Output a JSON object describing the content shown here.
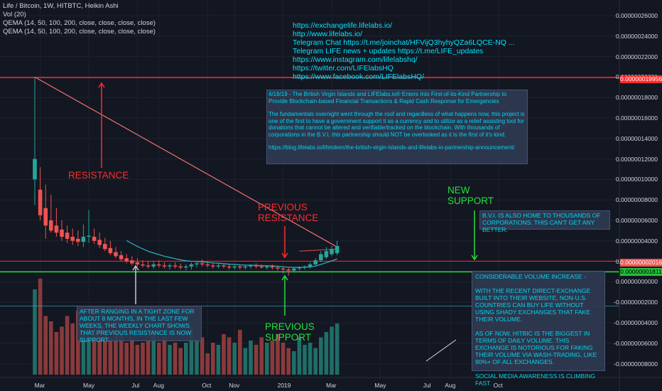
{
  "legend": {
    "symbol": "Life / Bitcoin, 1W, HITBTC, Heikin Ashi",
    "vol": "Vol (20)",
    "qema1": "QEMA (14, 50, 100, 200, close, close, close, close)",
    "qema2": "QEMA (14, 50, 100, 200, close, close, close, close)"
  },
  "links": [
    "https://exchangelife.lifelabs.io/",
    "http://www.lifelabs.io/",
    "Telegram Chat  https://t.me/joinchat/HFVijQ3hyhyQZa6LQCE-NQ ...",
    "Telegram LIFE news + updates  https://t.me/LIFE_updates",
    "https://www.instagram.com/lifelabshq/",
    "https://twitter.com/LIFElabsHQ",
    "https://www.facebook.com/LIFElabsHQ/"
  ],
  "news": {
    "p1": "4/18/19 - The British Virgin Islands and LIFElabs.io® Enters Into First-of-its-Kind Partnership to Provide Blockchain-based Financial Transactions & Rapid Cash Response for Emergencies",
    "p2": "The fundamentals overnight went through the roof and regardless of what happens now, this project is one of the first to have a government support it as a currency and to utilize as a relief assisting tool for donations that cannot be altered and verifiable/tracked on the blockchain. With thousands of corporations in the B.V.I, this partnership should NOT be overlooked  as it is the first of it's kind.",
    "p3": "https://blog.lifelabs.io/lifetoken/the-british-virgin-islands-and-lifelabs-io-partnership-announcement/"
  },
  "annotations": {
    "resistance": "RESISTANCE",
    "prev_resistance_1": "PREVIOUS",
    "prev_resistance_2": "RESISTANCE",
    "new_support_1": "NEW",
    "new_support_2": "SUPPORT",
    "prev_support_1": "PREVIOUS",
    "prev_support_2": "SUPPORT",
    "bvi": "B.V.I. IS ALSO HOME TO THOUSANDS OF CORPORATIONS. THIS CAN'T GET ANY BETTER.",
    "range": "AFTER RANGING IN A TIGHT ZONE FOR ABOUT 8 MONTHS, IN THE LAST FEW WEEKS, THE WEEKLY CHART SHOWS THAT PREVIOUS RESISTANCE IS NOW SUPPORT.",
    "volume_1": "CONSIDERABLE VOLUME INCREASE -",
    "volume_2": "WITH THE RECENT DIRECT-EXCHANGE BUILT INTO THEIR WEBSITE, NON-U.S. COUNTRIES CAN BUY LIFE WITHOUT USING SHADY EXCHANGES THAT FAKE THEIR VOLUME.",
    "volume_3": "AS OF NOW, HITBIC IS THE BIGGEST IN TERMS OF DAILY VOLUME. THIS EXCHANGE IS NOTORIOUS FOR FAKING THEIR VOLUME VIA WASH-TRADING, LIKE 90%+ OF ALL EXCHANGES.",
    "volume_4": "SOCIAL MEDIA AWARENESS IS CLIMBING FAST."
  },
  "price_tags": {
    "resistance": "0.00000019956",
    "current": "0.00000002016",
    "support": "0.00000001811"
  },
  "colors": {
    "background": "#131722",
    "up_candle": "#26a69a",
    "down_candle": "#ef5350",
    "up_volume": "#1f6e67",
    "down_volume": "#8a3a3c",
    "ema": "#2bb7c5",
    "resistance_line": "#ff2b2b",
    "support_line": "#22e03c",
    "annotation_cyan": "#00e5ff"
  },
  "chart_data": {
    "type": "candlestick",
    "series_type": "Heikin Ashi",
    "y_axis": {
      "ticks": [
        "0.00000026000",
        "0.00000024000",
        "0.00000022000",
        "0.00000020000",
        "0.00000018000",
        "0.00000016000",
        "0.00000014000",
        "0.00000012000",
        "0.00000010000",
        "0.00000008000",
        "0.00000006000",
        "0.00000004000",
        "0.00000002000",
        "0.00000000000",
        "-0.00000002000",
        "-0.00000004000",
        "-0.00000006000",
        "-0.00000008000"
      ],
      "range": [
        -9e-08,
        2.7e-07
      ]
    },
    "x_axis": {
      "ticks": [
        {
          "label": "Mar",
          "week": 1
        },
        {
          "label": "May",
          "week": 10
        },
        {
          "label": "Jul",
          "week": 19
        },
        {
          "label": "Aug",
          "week": 23
        },
        {
          "label": "Oct",
          "week": 32
        },
        {
          "label": "Nov",
          "week": 37
        },
        {
          "label": "2019",
          "week": 46
        },
        {
          "label": "Mar",
          "week": 55
        },
        {
          "label": "May",
          "week": 64
        },
        {
          "label": "Jul",
          "week": 73
        },
        {
          "label": "Aug",
          "week": 77
        },
        {
          "label": "Oct",
          "week": 86
        }
      ]
    },
    "candles": [
      {
        "o": 1e-07,
        "h": 2e-07,
        "l": 7.5e-08,
        "c": 1.2e-07
      },
      {
        "o": 9e-08,
        "h": 1.12e-07,
        "l": 6e-08,
        "c": 6.5e-08
      },
      {
        "o": 7.2e-08,
        "h": 9.5e-08,
        "l": 4.2e-08,
        "c": 5.5e-08
      },
      {
        "o": 6e-08,
        "h": 8.5e-08,
        "l": 4.8e-08,
        "c": 5e-08
      },
      {
        "o": 5.5e-08,
        "h": 7.2e-08,
        "l": 4.4e-08,
        "c": 4.8e-08
      },
      {
        "o": 5.1e-08,
        "h": 6e-08,
        "l": 4e-08,
        "c": 4.4e-08
      },
      {
        "o": 4.8e-08,
        "h": 5.5e-08,
        "l": 3.8e-08,
        "c": 4.2e-08
      },
      {
        "o": 4.4e-08,
        "h": 5.2e-08,
        "l": 3.6e-08,
        "c": 4e-08
      },
      {
        "o": 4.2e-08,
        "h": 5e-08,
        "l": 3.5e-08,
        "c": 3.9e-08
      },
      {
        "o": 3.9e-08,
        "h": 5.6e-08,
        "l": 3.4e-08,
        "c": 4.4e-08
      },
      {
        "o": 4.4e-08,
        "h": 7e-08,
        "l": 3.8e-08,
        "c": 4.5e-08
      },
      {
        "o": 4.4e-08,
        "h": 5.2e-08,
        "l": 3.7e-08,
        "c": 4e-08
      },
      {
        "o": 4.1e-08,
        "h": 4.8e-08,
        "l": 3.3e-08,
        "c": 3.6e-08
      },
      {
        "o": 3.7e-08,
        "h": 4.3e-08,
        "l": 3e-08,
        "c": 3.2e-08
      },
      {
        "o": 3.3e-08,
        "h": 4e-08,
        "l": 2.6e-08,
        "c": 2.8e-08
      },
      {
        "o": 2.9e-08,
        "h": 3.4e-08,
        "l": 2.3e-08,
        "c": 2.5e-08
      },
      {
        "o": 2.6e-08,
        "h": 3e-08,
        "l": 2e-08,
        "c": 2.2e-08
      },
      {
        "o": 2.3e-08,
        "h": 2.7e-08,
        "l": 1.8e-08,
        "c": 2e-08
      },
      {
        "o": 2.1e-08,
        "h": 2.5e-08,
        "l": 1.6e-08,
        "c": 1.8e-08
      },
      {
        "o": 1.9e-08,
        "h": 2.3e-08,
        "l": 1.5e-08,
        "c": 1.7e-08
      },
      {
        "o": 1.7e-08,
        "h": 2.1e-08,
        "l": 1.4e-08,
        "c": 1.6e-08
      },
      {
        "o": 1.6e-08,
        "h": 2e-08,
        "l": 1.3e-08,
        "c": 1.5e-08
      },
      {
        "o": 1.5e-08,
        "h": 2e-08,
        "l": 1.3e-08,
        "c": 1.7e-08
      },
      {
        "o": 1.7e-08,
        "h": 2.1e-08,
        "l": 1.4e-08,
        "c": 1.6e-08
      },
      {
        "o": 1.6e-08,
        "h": 1.9e-08,
        "l": 1.3e-08,
        "c": 1.5e-08
      },
      {
        "o": 1.5e-08,
        "h": 1.8e-08,
        "l": 1.2e-08,
        "c": 1.6e-08
      },
      {
        "o": 1.6e-08,
        "h": 1.9e-08,
        "l": 1.3e-08,
        "c": 1.5e-08
      },
      {
        "o": 1.5e-08,
        "h": 1.8e-08,
        "l": 1.2e-08,
        "c": 1.4e-08
      },
      {
        "o": 1.4e-08,
        "h": 1.7e-08,
        "l": 1.1e-08,
        "c": 1.5e-08
      },
      {
        "o": 1.5e-08,
        "h": 1.9e-08,
        "l": 1.2e-08,
        "c": 1.7e-08
      },
      {
        "o": 1.7e-08,
        "h": 2e-08,
        "l": 1.4e-08,
        "c": 1.8e-08
      },
      {
        "o": 1.8e-08,
        "h": 2.2e-08,
        "l": 1.5e-08,
        "c": 1.7e-08
      },
      {
        "o": 1.7e-08,
        "h": 2e-08,
        "l": 1.4e-08,
        "c": 1.6e-08
      },
      {
        "o": 1.6e-08,
        "h": 1.9e-08,
        "l": 1.3e-08,
        "c": 1.5e-08
      },
      {
        "o": 1.5e-08,
        "h": 1.8e-08,
        "l": 1.3e-08,
        "c": 1.6e-08
      },
      {
        "o": 1.6e-08,
        "h": 1.8e-08,
        "l": 1.3e-08,
        "c": 1.5e-08
      },
      {
        "o": 1.5e-08,
        "h": 1.7e-08,
        "l": 1.2e-08,
        "c": 1.4e-08
      },
      {
        "o": 1.4e-08,
        "h": 1.6e-08,
        "l": 1.2e-08,
        "c": 1.5e-08
      },
      {
        "o": 1.5e-08,
        "h": 1.7e-08,
        "l": 1.2e-08,
        "c": 1.4e-08
      },
      {
        "o": 1.4e-08,
        "h": 1.6e-08,
        "l": 1.2e-08,
        "c": 1.5e-08
      },
      {
        "o": 1.5e-08,
        "h": 1.7e-08,
        "l": 1.3e-08,
        "c": 1.6e-08
      },
      {
        "o": 1.6e-08,
        "h": 1.8e-08,
        "l": 1.3e-08,
        "c": 1.5e-08
      },
      {
        "o": 1.5e-08,
        "h": 1.7e-08,
        "l": 1.3e-08,
        "c": 1.4e-08
      },
      {
        "o": 1.4e-08,
        "h": 1.6e-08,
        "l": 1.2e-08,
        "c": 1.5e-08
      },
      {
        "o": 1.5e-08,
        "h": 1.7e-08,
        "l": 1.2e-08,
        "c": 1.4e-08
      },
      {
        "o": 1.4e-08,
        "h": 1.6e-08,
        "l": 1.1e-08,
        "c": 1.3e-08
      },
      {
        "o": 1.3e-08,
        "h": 1.5e-08,
        "l": 8e-09,
        "c": 1.2e-08
      },
      {
        "o": 1.2e-08,
        "h": 1.4e-08,
        "l": 6e-09,
        "c": 1.1e-08
      },
      {
        "o": 1.1e-08,
        "h": 1.4e-08,
        "l": 9e-09,
        "c": 1.3e-08
      },
      {
        "o": 1.3e-08,
        "h": 1.5e-08,
        "l": 1.1e-08,
        "c": 1.4e-08
      },
      {
        "o": 1.4e-08,
        "h": 1.6e-08,
        "l": 1.2e-08,
        "c": 1.5e-08
      },
      {
        "o": 1.5e-08,
        "h": 1.9e-08,
        "l": 1.3e-08,
        "c": 1.7e-08
      },
      {
        "o": 1.7e-08,
        "h": 2.3e-08,
        "l": 1.5e-08,
        "c": 2.1e-08
      },
      {
        "o": 2.1e-08,
        "h": 3e-08,
        "l": 1.9e-08,
        "c": 2.7e-08
      },
      {
        "o": 2.4e-08,
        "h": 3.4e-08,
        "l": 2.2e-08,
        "c": 3e-08
      },
      {
        "o": 2.7e-08,
        "h": 3.5e-08,
        "l": 2.5e-08,
        "c": 3.2e-08
      },
      {
        "o": 2.8e-08,
        "h": 4e-08,
        "l": 2.6e-08,
        "c": 3.5e-08
      }
    ],
    "volume": [
      0.8,
      0.9,
      0.55,
      0.5,
      0.4,
      0.45,
      0.55,
      0.48,
      0.6,
      0.42,
      0.5,
      0.38,
      0.45,
      0.4,
      0.35,
      0.42,
      0.38,
      0.3,
      0.35,
      0.28,
      0.3,
      0.32,
      0.38,
      0.3,
      0.35,
      0.28,
      0.3,
      0.25,
      0.3,
      0.45,
      0.33,
      0.35,
      0.2,
      0.3,
      0.28,
      0.38,
      0.35,
      0.3,
      0.42,
      0.25,
      0.32,
      0.28,
      0.35,
      0.3,
      0.32,
      0.38,
      0.3,
      0.25,
      0.22,
      0.35,
      0.28,
      0.3,
      0.25,
      0.35,
      0.4,
      0.45,
      0.48
    ]
  }
}
